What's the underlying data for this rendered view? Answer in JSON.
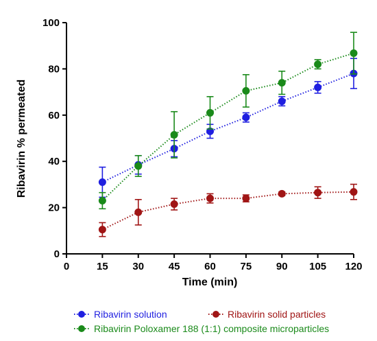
{
  "chart_data": {
    "type": "line",
    "xlabel": "Time (min)",
    "ylabel": "Ribavirin % permeated",
    "xlim": [
      0,
      120
    ],
    "ylim": [
      0,
      100
    ],
    "xticks": [
      "0",
      "15",
      "30",
      "45",
      "60",
      "75",
      "90",
      "105",
      "120"
    ],
    "yticks": [
      "0",
      "20",
      "40",
      "60",
      "80",
      "100"
    ],
    "grid": false,
    "legend_position": "bottom",
    "x": [
      15,
      30,
      45,
      60,
      75,
      90,
      105,
      120
    ],
    "series": [
      {
        "name": "Ribavirin solution",
        "color": "#1f1fe0",
        "values": [
          31,
          38.5,
          45.5,
          53,
          59,
          66,
          72,
          78
        ],
        "errors": [
          6.5,
          4,
          3.5,
          3,
          2,
          2,
          2.5,
          6.5
        ]
      },
      {
        "name": "Ribavirin solid  particles",
        "color": "#a01515",
        "values": [
          10.5,
          18,
          21.5,
          24,
          24,
          26,
          26.5,
          26.8
        ],
        "errors": [
          3,
          5.5,
          2.5,
          2,
          1.5,
          0.8,
          2.5,
          3.3
        ]
      },
      {
        "name": "Ribavirin Poloxamer 188 (1:1) composite microparticles",
        "color": "#1a8a1a",
        "values": [
          23,
          38,
          51.5,
          61,
          70.5,
          74,
          82,
          86.8
        ],
        "errors": [
          3.5,
          4.5,
          10,
          7,
          7,
          5,
          2,
          9
        ]
      }
    ]
  }
}
